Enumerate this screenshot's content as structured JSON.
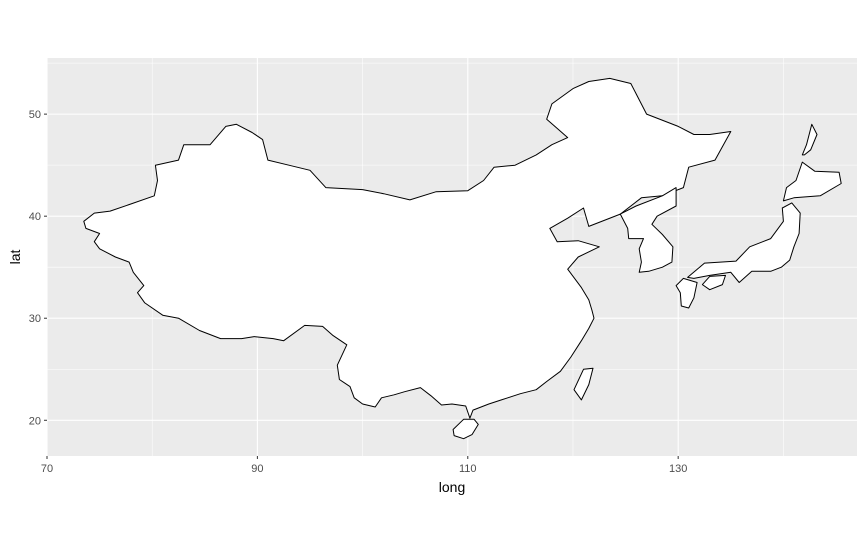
{
  "chart_data": {
    "type": "map",
    "xlabel": "long",
    "ylabel": "lat",
    "xlim": [
      70,
      147
    ],
    "ylim": [
      16.5,
      55.5
    ],
    "x_ticks": [
      70,
      90,
      110,
      130
    ],
    "y_ticks": [
      20,
      30,
      40,
      50
    ],
    "x_tick_labels": [
      "70",
      "90",
      "110",
      "130"
    ],
    "y_tick_labels": [
      "20",
      "30",
      "40",
      "50"
    ],
    "grid": true,
    "colors": {
      "panel_background": "#ebebeb",
      "grid_line": "#ffffff",
      "land_fill": "#ffffff",
      "outline": "#000000"
    },
    "regions": [
      {
        "name": "China",
        "outline": [
          [
            73.5,
            39.5
          ],
          [
            74.5,
            40.3
          ],
          [
            76,
            40.5
          ],
          [
            78,
            41.2
          ],
          [
            80.2,
            42
          ],
          [
            80.5,
            43.5
          ],
          [
            80.3,
            45
          ],
          [
            82.5,
            45.5
          ],
          [
            83,
            47
          ],
          [
            85.5,
            47
          ],
          [
            87,
            48.8
          ],
          [
            88,
            49
          ],
          [
            89.5,
            48.2
          ],
          [
            90.5,
            47.5
          ],
          [
            91,
            45.5
          ],
          [
            93,
            45
          ],
          [
            95,
            44.5
          ],
          [
            96.5,
            42.8
          ],
          [
            100,
            42.6
          ],
          [
            102,
            42.2
          ],
          [
            104.5,
            41.6
          ],
          [
            107,
            42.4
          ],
          [
            110,
            42.5
          ],
          [
            111.5,
            43.5
          ],
          [
            112.5,
            44.8
          ],
          [
            114.5,
            45
          ],
          [
            116.5,
            46
          ],
          [
            118,
            47
          ],
          [
            119.5,
            47.7
          ],
          [
            117.5,
            49.5
          ],
          [
            118,
            51
          ],
          [
            120,
            52.5
          ],
          [
            121.5,
            53.2
          ],
          [
            123.5,
            53.5
          ],
          [
            125.5,
            53
          ],
          [
            127,
            50
          ],
          [
            130,
            48.8
          ],
          [
            131.5,
            48
          ],
          [
            133,
            48
          ],
          [
            135,
            48.3
          ],
          [
            133.5,
            45.5
          ],
          [
            131,
            44.8
          ],
          [
            130.5,
            42.8
          ],
          [
            128.5,
            42
          ],
          [
            126.5,
            41.8
          ],
          [
            124.5,
            40.2
          ],
          [
            121.5,
            39
          ],
          [
            121,
            40.8
          ],
          [
            119.5,
            39.8
          ],
          [
            117.8,
            38.8
          ],
          [
            118.5,
            37.5
          ],
          [
            120.5,
            37.6
          ],
          [
            122.5,
            37
          ],
          [
            120.5,
            36
          ],
          [
            119.5,
            34.8
          ],
          [
            120.8,
            33
          ],
          [
            121.5,
            31.8
          ],
          [
            121.8,
            30.8
          ],
          [
            122,
            30
          ],
          [
            121.5,
            29
          ],
          [
            120.8,
            27.8
          ],
          [
            119.8,
            26.2
          ],
          [
            118.8,
            24.8
          ],
          [
            117.5,
            23.8
          ],
          [
            116.5,
            23
          ],
          [
            115,
            22.6
          ],
          [
            113.8,
            22.2
          ],
          [
            113.2,
            22
          ],
          [
            112,
            21.6
          ],
          [
            110.5,
            21
          ],
          [
            110.2,
            20.2
          ],
          [
            109.8,
            21.4
          ],
          [
            108.5,
            21.6
          ],
          [
            107.5,
            21.5
          ],
          [
            106.5,
            22.4
          ],
          [
            105.5,
            23.2
          ],
          [
            104,
            22.8
          ],
          [
            103,
            22.5
          ],
          [
            101.8,
            22.2
          ],
          [
            101.2,
            21.3
          ],
          [
            100,
            21.6
          ],
          [
            99.2,
            22.2
          ],
          [
            98.8,
            23.3
          ],
          [
            97.8,
            24
          ],
          [
            97.6,
            25.4
          ],
          [
            98.5,
            27.4
          ],
          [
            97.2,
            28.3
          ],
          [
            96.2,
            29.2
          ],
          [
            94.5,
            29.3
          ],
          [
            92.5,
            27.8
          ],
          [
            91.5,
            28
          ],
          [
            89.7,
            28.2
          ],
          [
            88.5,
            28
          ],
          [
            86.5,
            28
          ],
          [
            84.5,
            28.8
          ],
          [
            82.5,
            30
          ],
          [
            81,
            30.3
          ],
          [
            79.3,
            31.5
          ],
          [
            78.6,
            32.5
          ],
          [
            79.2,
            33.2
          ],
          [
            78.2,
            34.5
          ],
          [
            77.8,
            35.5
          ],
          [
            76.5,
            36
          ],
          [
            75,
            36.8
          ],
          [
            74.5,
            37.5
          ],
          [
            75,
            38.3
          ],
          [
            73.7,
            38.8
          ]
        ]
      },
      {
        "name": "Hainan",
        "outline": [
          [
            108.6,
            19.1
          ],
          [
            109.6,
            20.1
          ],
          [
            110.6,
            20.1
          ],
          [
            111.0,
            19.6
          ],
          [
            110.4,
            18.6
          ],
          [
            109.6,
            18.2
          ],
          [
            108.7,
            18.5
          ]
        ]
      },
      {
        "name": "Taiwan",
        "outline": [
          [
            120.1,
            23.0
          ],
          [
            121.0,
            25.0
          ],
          [
            121.9,
            25.1
          ],
          [
            121.5,
            23.5
          ],
          [
            120.8,
            22.0
          ]
        ]
      },
      {
        "name": "Korea",
        "outline": [
          [
            124.5,
            40.2
          ],
          [
            126,
            41
          ],
          [
            128.5,
            42
          ],
          [
            129.8,
            42.8
          ],
          [
            129.8,
            41
          ],
          [
            128,
            40
          ],
          [
            127.5,
            39.2
          ],
          [
            128.5,
            38.2
          ],
          [
            129.5,
            37
          ],
          [
            129.4,
            35.5
          ],
          [
            128.5,
            35
          ],
          [
            127.2,
            34.6
          ],
          [
            126.3,
            34.5
          ],
          [
            126.5,
            35.5
          ],
          [
            126.3,
            36.8
          ],
          [
            126.7,
            37.8
          ],
          [
            125.3,
            37.8
          ],
          [
            125.2,
            38.8
          ]
        ]
      },
      {
        "name": "Sakhalin",
        "outline": [
          [
            141.8,
            46
          ],
          [
            142.2,
            47
          ],
          [
            142.7,
            49
          ],
          [
            143.2,
            48
          ],
          [
            142.6,
            46.5
          ],
          [
            142,
            46
          ]
        ]
      },
      {
        "name": "Honshu",
        "outline": [
          [
            130.9,
            34
          ],
          [
            132.5,
            35.4
          ],
          [
            135.5,
            35.6
          ],
          [
            136.8,
            37
          ],
          [
            138.8,
            37.8
          ],
          [
            140,
            39.5
          ],
          [
            139.9,
            40.8
          ],
          [
            140.8,
            41.3
          ],
          [
            141.6,
            40.3
          ],
          [
            141.5,
            38.3
          ],
          [
            141,
            37
          ],
          [
            140.6,
            35.7
          ],
          [
            139.8,
            35
          ],
          [
            138.8,
            34.6
          ],
          [
            137,
            34.6
          ],
          [
            135.8,
            33.5
          ],
          [
            135,
            34.5
          ],
          [
            133,
            34.2
          ],
          [
            131.5,
            33.9
          ]
        ]
      },
      {
        "name": "Hokkaido",
        "outline": [
          [
            140,
            41.5
          ],
          [
            140.3,
            42.8
          ],
          [
            141.2,
            43.5
          ],
          [
            141.8,
            45.3
          ],
          [
            143,
            44.4
          ],
          [
            145.3,
            44.3
          ],
          [
            145.5,
            43.2
          ],
          [
            143.5,
            42
          ],
          [
            141,
            41.8
          ]
        ]
      },
      {
        "name": "Kyushu",
        "outline": [
          [
            129.8,
            33.2
          ],
          [
            130.5,
            33.9
          ],
          [
            131.8,
            33.5
          ],
          [
            131.5,
            32
          ],
          [
            131,
            31
          ],
          [
            130.3,
            31.2
          ],
          [
            130.2,
            32.5
          ]
        ]
      },
      {
        "name": "Shikoku",
        "outline": [
          [
            132.3,
            33.3
          ],
          [
            133,
            34.1
          ],
          [
            134.5,
            34.2
          ],
          [
            134.2,
            33.3
          ],
          [
            133,
            32.8
          ]
        ]
      }
    ]
  }
}
